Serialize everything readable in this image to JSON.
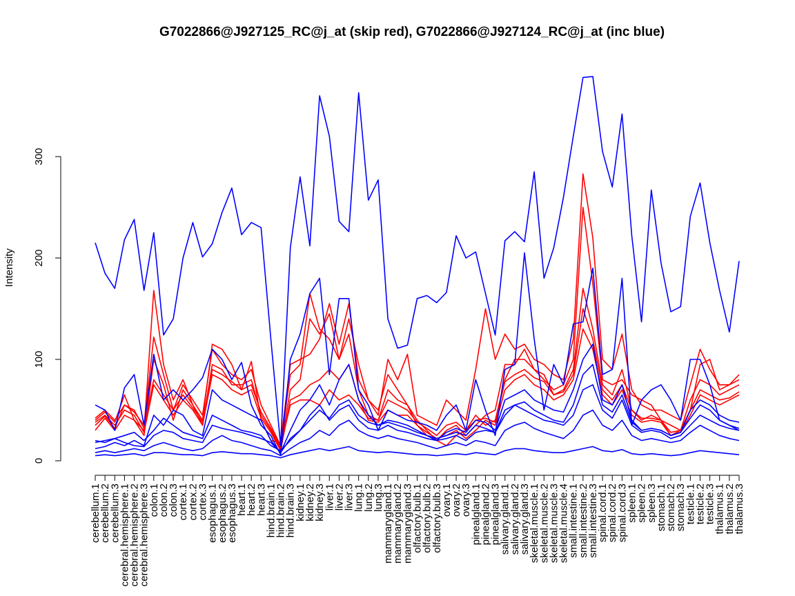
{
  "chart_data": {
    "type": "line",
    "title": "G7022866@J927125_RC@j_at (skip red), G7022866@J927124_RC@j_at (inc blue)",
    "xlabel": "",
    "ylabel": "Intensity",
    "ylim": [
      0,
      380
    ],
    "yticks": [
      0,
      100,
      200,
      300
    ],
    "grid": false,
    "legend": "none",
    "colors": {
      "skip": "#ff0000",
      "inc": "#0000ff",
      "axis": "#000000"
    },
    "categories": [
      "cerebellum.1",
      "cerebellum.2",
      "cerebellum.3",
      "cerebral.hemisphere.1",
      "cerebral.hemisphere.2",
      "cerebral.hemisphere.3",
      "colon.1",
      "colon.2",
      "colon.3",
      "cortex.1",
      "cortex.2",
      "cortex.3",
      "esophagus.1",
      "esophagus.2",
      "esophagus.3",
      "heart.1",
      "heart.2",
      "heart.3",
      "hind.brain.1",
      "hind.brain.2",
      "hind.brain.3",
      "kidney.1",
      "kidney.2",
      "kidney.3",
      "liver.1",
      "liver.2",
      "liver.3",
      "lung.1",
      "lung.2",
      "lung.3",
      "mammarygland.1",
      "mammarygland.2",
      "mammarygland.3",
      "olfactory.bulb.1",
      "olfactory.bulb.2",
      "olfactory.bulb.3",
      "ovary.1",
      "ovary.2",
      "ovary.3",
      "pinealgland.1",
      "pinealgland.2",
      "pinealgland.3",
      "salivary.gland.1",
      "salivary.gland.2",
      "salivary.gland.3",
      "skeletal.muscle.1",
      "skeletal.muscle.2",
      "skeletal.muscle.3",
      "skeletal.muscle.4",
      "small.intestine.1",
      "small.intestine.2",
      "small.intestine.3",
      "spinal.cord.1",
      "spinal.cord.2",
      "spinal.cord.3",
      "spleen.1",
      "spleen.2",
      "spleen.3",
      "stomach.1",
      "stomach.2",
      "stomach.3",
      "testicle.1",
      "testicle.2",
      "testicle.3",
      "thalamus.1",
      "thalamus.2",
      "thalamus.3"
    ],
    "series": [
      {
        "group": "skip",
        "values": [
          40,
          48,
          38,
          65,
          40,
          30,
          168,
          95,
          60,
          80,
          55,
          40,
          115,
          110,
          95,
          70,
          98,
          40,
          20,
          18,
          95,
          100,
          105,
          120,
          155,
          115,
          155,
          80,
          60,
          50,
          85,
          70,
          55,
          40,
          30,
          20,
          15,
          25,
          30,
          45,
          35,
          40,
          80,
          100,
          100,
          90,
          80,
          70,
          75,
          100,
          250,
          175,
          80,
          75,
          80,
          65,
          60,
          55,
          40,
          35,
          30,
          50,
          95,
          100,
          70,
          75,
          85
        ]
      },
      {
        "group": "skip",
        "values": [
          35,
          44,
          32,
          55,
          48,
          35,
          122,
          85,
          50,
          75,
          60,
          45,
          110,
          95,
          85,
          80,
          90,
          55,
          35,
          15,
          85,
          95,
          165,
          130,
          120,
          100,
          140,
          95,
          60,
          45,
          100,
          80,
          105,
          45,
          40,
          35,
          60,
          50,
          40,
          90,
          150,
          100,
          125,
          110,
          115,
          100,
          95,
          85,
          80,
          120,
          283,
          220,
          100,
          90,
          125,
          70,
          55,
          50,
          50,
          45,
          40,
          75,
          110,
          90,
          75,
          75,
          80
        ]
      },
      {
        "group": "skip",
        "values": [
          30,
          42,
          30,
          45,
          40,
          25,
          100,
          75,
          40,
          70,
          55,
          35,
          95,
          90,
          75,
          75,
          80,
          45,
          30,
          12,
          70,
          80,
          140,
          125,
          145,
          100,
          125,
          70,
          45,
          40,
          70,
          60,
          55,
          35,
          25,
          20,
          30,
          35,
          25,
          35,
          45,
          50,
          95,
          95,
          110,
          90,
          85,
          65,
          70,
          90,
          170,
          130,
          75,
          65,
          90,
          50,
          40,
          45,
          40,
          25,
          30,
          60,
          80,
          75,
          65,
          70,
          75
        ]
      },
      {
        "group": "skip",
        "values": [
          38,
          45,
          35,
          50,
          45,
          28,
          75,
          60,
          45,
          60,
          50,
          35,
          85,
          80,
          70,
          65,
          70,
          42,
          28,
          10,
          60,
          65,
          75,
          80,
          90,
          80,
          95,
          60,
          40,
          38,
          50,
          45,
          45,
          35,
          28,
          22,
          25,
          30,
          22,
          30,
          40,
          35,
          70,
          80,
          85,
          75,
          70,
          60,
          65,
          80,
          130,
          110,
          65,
          55,
          70,
          45,
          38,
          40,
          38,
          25,
          28,
          45,
          65,
          60,
          55,
          60,
          65
        ]
      },
      {
        "group": "skip",
        "values": [
          42,
          50,
          40,
          55,
          50,
          32,
          80,
          65,
          50,
          65,
          52,
          38,
          90,
          85,
          78,
          70,
          75,
          48,
          32,
          14,
          55,
          60,
          60,
          55,
          70,
          60,
          65,
          55,
          42,
          40,
          60,
          55,
          50,
          38,
          32,
          25,
          35,
          38,
          30,
          40,
          42,
          38,
          78,
          85,
          90,
          82,
          78,
          65,
          68,
          85,
          150,
          120,
          70,
          60,
          75,
          50,
          42,
          42,
          40,
          28,
          30,
          50,
          70,
          65,
          60,
          62,
          68
        ]
      },
      {
        "group": "inc",
        "values": [
          215,
          185,
          170,
          218,
          238,
          168,
          225,
          124,
          140,
          200,
          235,
          201,
          214,
          245,
          269,
          223,
          235,
          230,
          120,
          15,
          210,
          280,
          212,
          360,
          320,
          236,
          226,
          363,
          257,
          277,
          140,
          111,
          114,
          160,
          163,
          156,
          166,
          222,
          200,
          206,
          165,
          124,
          217,
          226,
          216,
          285,
          180,
          210,
          260,
          320,
          378,
          379,
          305,
          270,
          342,
          222,
          137,
          267,
          195,
          147,
          152,
          241,
          274,
          215,
          168,
          127,
          197
        ]
      },
      {
        "group": "inc",
        "values": [
          55,
          50,
          30,
          72,
          85,
          35,
          105,
          60,
          70,
          60,
          70,
          82,
          110,
          100,
          80,
          97,
          55,
          35,
          25,
          6,
          100,
          125,
          165,
          180,
          85,
          160,
          160,
          70,
          55,
          30,
          50,
          45,
          40,
          38,
          35,
          30,
          45,
          55,
          30,
          80,
          50,
          25,
          90,
          95,
          205,
          120,
          50,
          95,
          75,
          135,
          137,
          190,
          85,
          90,
          180,
          35,
          60,
          70,
          75,
          60,
          40,
          100,
          100,
          75,
          40,
          35,
          30
        ]
      },
      {
        "group": "inc",
        "values": [
          18,
          20,
          22,
          25,
          28,
          20,
          30,
          42,
          35,
          28,
          25,
          22,
          45,
          40,
          35,
          30,
          28,
          25,
          15,
          10,
          20,
          30,
          45,
          55,
          40,
          50,
          55,
          40,
          32,
          30,
          35,
          30,
          28,
          25,
          22,
          20,
          22,
          25,
          20,
          28,
          30,
          28,
          45,
          55,
          50,
          45,
          40,
          38,
          35,
          45,
          70,
          75,
          50,
          42,
          60,
          35,
          28,
          30,
          28,
          22,
          25,
          35,
          45,
          40,
          35,
          32,
          30
        ]
      },
      {
        "group": "inc",
        "values": [
          12,
          14,
          18,
          15,
          20,
          15,
          45,
          35,
          50,
          45,
          30,
          25,
          70,
          60,
          55,
          50,
          45,
          40,
          20,
          8,
          30,
          50,
          60,
          75,
          55,
          80,
          95,
          60,
          45,
          35,
          40,
          38,
          35,
          30,
          25,
          20,
          28,
          32,
          28,
          40,
          38,
          30,
          60,
          65,
          70,
          60,
          55,
          50,
          48,
          70,
          100,
          115,
          60,
          55,
          75,
          40,
          30,
          32,
          30,
          25,
          28,
          50,
          60,
          55,
          45,
          40,
          38
        ]
      },
      {
        "group": "inc",
        "values": [
          8,
          10,
          8,
          10,
          12,
          10,
          15,
          18,
          15,
          12,
          10,
          12,
          20,
          25,
          20,
          18,
          15,
          12,
          10,
          5,
          12,
          18,
          22,
          30,
          25,
          35,
          40,
          30,
          25,
          22,
          25,
          22,
          20,
          18,
          15,
          12,
          15,
          18,
          15,
          20,
          18,
          15,
          30,
          35,
          38,
          32,
          28,
          25,
          22,
          30,
          45,
          50,
          35,
          30,
          40,
          25,
          20,
          22,
          20,
          18,
          20,
          28,
          35,
          30,
          25,
          22,
          20
        ]
      },
      {
        "group": "inc",
        "values": [
          5,
          6,
          5,
          6,
          7,
          5,
          8,
          8,
          7,
          6,
          6,
          5,
          8,
          9,
          8,
          7,
          7,
          6,
          5,
          3,
          6,
          8,
          10,
          12,
          10,
          12,
          14,
          10,
          9,
          8,
          9,
          8,
          7,
          6,
          6,
          5,
          6,
          7,
          6,
          8,
          7,
          6,
          10,
          12,
          12,
          10,
          9,
          8,
          8,
          10,
          12,
          14,
          10,
          9,
          11,
          7,
          6,
          7,
          6,
          5,
          6,
          8,
          10,
          9,
          8,
          7,
          6
        ]
      },
      {
        "group": "inc",
        "values": [
          20,
          18,
          22,
          18,
          15,
          14,
          25,
          30,
          28,
          22,
          20,
          18,
          35,
          32,
          30,
          28,
          25,
          22,
          18,
          8,
          22,
          30,
          40,
          50,
          42,
          55,
          60,
          45,
          38,
          35,
          38,
          35,
          32,
          28,
          25,
          22,
          25,
          28,
          25,
          35,
          32,
          28,
          50,
          55,
          58,
          50,
          45,
          40,
          38,
          55,
          85,
          95,
          55,
          48,
          65,
          38,
          30,
          32,
          30,
          25,
          28,
          42,
          55,
          50,
          40,
          35,
          32
        ]
      }
    ]
  }
}
